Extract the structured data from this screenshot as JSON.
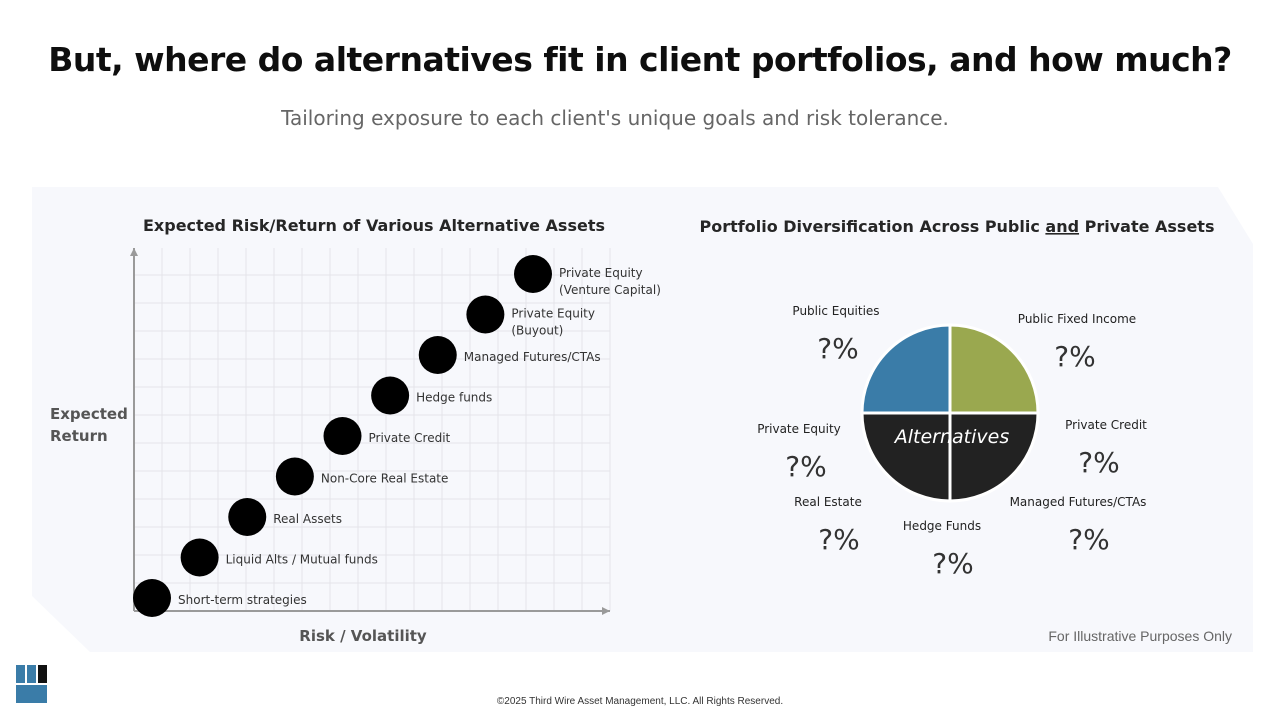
{
  "header": {
    "title": "But, where do alternatives fit in client portfolios, and how much?",
    "subtitle": "Tailoring exposure to each client's unique goals and risk tolerance."
  },
  "footer": {
    "copyright": "©2025 Third Wire Asset Management, LLC. All Rights Reserved.",
    "illustrative": "For Illustrative Purposes Only"
  },
  "colors": {
    "panel_bg": "#f7f8fc",
    "bubble": "#000000",
    "public_equities": "#3a7ca8",
    "public_fixed_income": "#9aa84f",
    "alternatives": "#222222"
  },
  "chart_data": [
    {
      "type": "scatter",
      "title": "Expected Risk/Return of Various Alternative Assets",
      "xlabel": "Risk / Volatility",
      "ylabel": [
        "Expected",
        "Return"
      ],
      "grid": true,
      "points": [
        {
          "label": [
            "Short-term strategies"
          ],
          "x": 1,
          "y": 1
        },
        {
          "label": [
            "Liquid Alts / Mutual funds"
          ],
          "x": 2,
          "y": 2
        },
        {
          "label": [
            "Real Assets"
          ],
          "x": 3,
          "y": 3
        },
        {
          "label": [
            "Non-Core Real Estate"
          ],
          "x": 4,
          "y": 4
        },
        {
          "label": [
            "Private Credit"
          ],
          "x": 5,
          "y": 5
        },
        {
          "label": [
            "Hedge funds"
          ],
          "x": 6,
          "y": 6
        },
        {
          "label": [
            "Managed Futures/CTAs"
          ],
          "x": 7,
          "y": 7
        },
        {
          "label": [
            "Private Equity",
            "(Buyout)"
          ],
          "x": 8,
          "y": 8
        },
        {
          "label": [
            "Private Equity",
            "(Venture Capital)"
          ],
          "x": 9,
          "y": 9
        }
      ]
    },
    {
      "type": "pie",
      "title": "Portfolio Diversification Across Public and Private Assets",
      "title_parts": [
        "Portfolio Diversification Across Public ",
        "and",
        " Private Assets"
      ],
      "slices": [
        {
          "name": "Public Equities",
          "value": 25
        },
        {
          "name": "Public Fixed Income",
          "value": 25
        },
        {
          "name": "Alternatives",
          "value": 50
        }
      ],
      "center_label": "Alternatives",
      "annotations": [
        {
          "name": "Public Equities",
          "value": "?%"
        },
        {
          "name": "Public Fixed Income",
          "value": "?%"
        },
        {
          "name": "Private Equity",
          "value": "?%"
        },
        {
          "name": "Private Credit",
          "value": "?%"
        },
        {
          "name": "Real Estate",
          "value": "?%"
        },
        {
          "name": "Managed Futures/CTAs",
          "value": "?%"
        },
        {
          "name": "Hedge Funds",
          "value": "?%"
        }
      ]
    }
  ]
}
